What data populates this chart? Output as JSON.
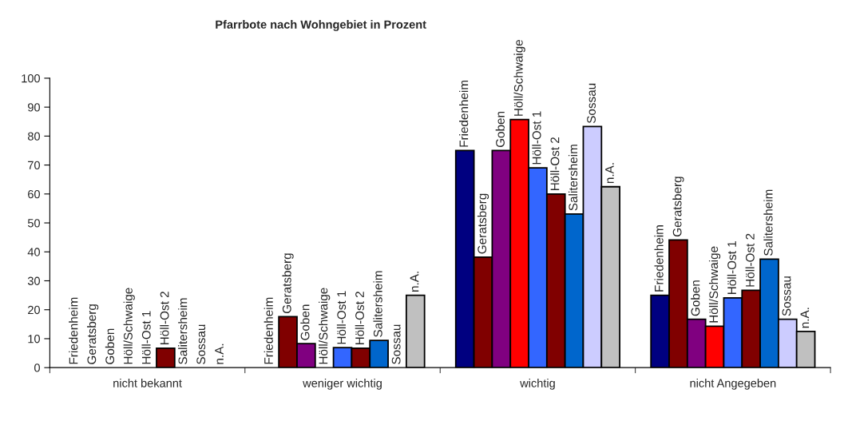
{
  "chart_data": {
    "type": "bar",
    "title": "Pfarrbote nach Wohngebiet in Prozent",
    "categories": [
      "nicht bekannt",
      "weniger wichtig",
      "wichtig",
      "nicht Angegeben"
    ],
    "series": [
      {
        "name": "Friedenheim",
        "color": "#000080",
        "values": [
          0,
          0,
          75,
          25
        ]
      },
      {
        "name": "Geratsberg",
        "color": "#800000",
        "values": [
          0,
          17.6,
          38.2,
          44.1
        ]
      },
      {
        "name": "Goben",
        "color": "#800080",
        "values": [
          0,
          8.3,
          75,
          16.7
        ]
      },
      {
        "name": "Höll/Schwaige",
        "color": "#ff0000",
        "values": [
          0,
          0,
          85.7,
          14.3
        ]
      },
      {
        "name": "Höll-Ost 1",
        "color": "#3366ff",
        "values": [
          0,
          6.9,
          69,
          24.1
        ]
      },
      {
        "name": "Höll-Ost 2",
        "color": "#800000",
        "values": [
          6.7,
          6.7,
          60,
          26.7
        ]
      },
      {
        "name": "Salitersheim",
        "color": "#0066cc",
        "values": [
          0,
          9.4,
          53.1,
          37.5
        ]
      },
      {
        "name": "Sossau",
        "color": "#ccccff",
        "values": [
          0,
          0,
          83.3,
          16.7
        ]
      },
      {
        "name": "n.A.",
        "color": "#c0c0c0",
        "values": [
          0,
          25,
          62.5,
          12.5
        ]
      }
    ],
    "ylim": [
      0,
      100
    ],
    "yticks": [
      0,
      10,
      20,
      30,
      40,
      50,
      60,
      70,
      80,
      90,
      100
    ],
    "grid": false,
    "legend": false
  }
}
